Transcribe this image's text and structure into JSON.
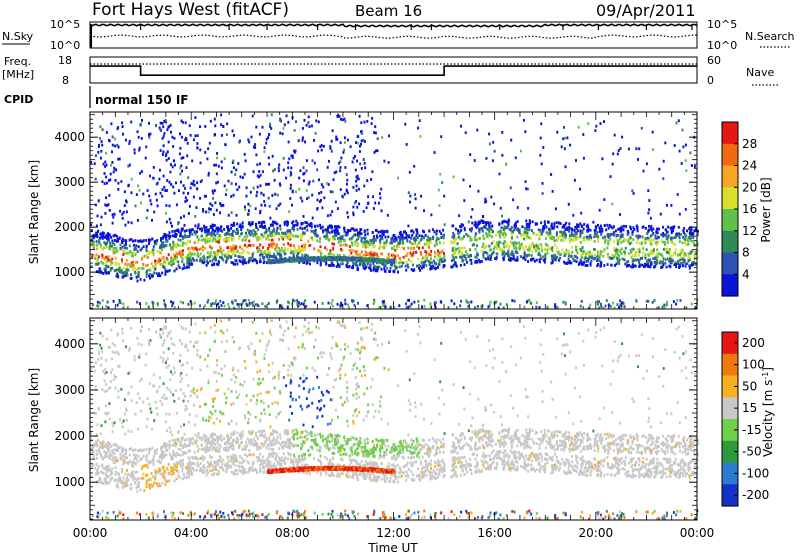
{
  "header": {
    "title_left": "Fort Hays West (fitACF)",
    "title_center": "Beam 16",
    "title_right": "09/Apr/2011"
  },
  "top_panels": {
    "nsky_label": "N.Sky",
    "nsky_ticks": [
      "10^5",
      "10^0"
    ],
    "nsky_right_ticks": [
      "10^5",
      "10^0"
    ],
    "nsearch_label": "N.Search",
    "freq_label": "Freq.",
    "freq_unit": "[MHz]",
    "freq_ticks": [
      "18",
      "8"
    ],
    "nave_ticks": [
      "60",
      "0"
    ],
    "nave_label": "Nave",
    "cpid_label": "CPID",
    "cpid_value": "normal 150 IF",
    "freq_segments": [
      {
        "start_hour": 0.0,
        "end_hour": 2.0,
        "mhz": 14.5
      },
      {
        "start_hour": 2.0,
        "end_hour": 14.0,
        "mhz": 11.0
      },
      {
        "start_hour": 14.0,
        "end_hour": 24.0,
        "mhz": 14.5
      }
    ]
  },
  "chart_data": [
    {
      "type": "heatmap",
      "name": "Power",
      "title": "",
      "xlabel": "",
      "ylabel": "Slant Range [km]",
      "xlim": [
        0,
        24
      ],
      "ylim": [
        180,
        4560
      ],
      "yticks": [
        "1000",
        "2000",
        "3000",
        "4000"
      ],
      "colorbar_label": "Power [dB]",
      "colorbar_ticks": [
        "4",
        "8",
        "12",
        "16",
        "20",
        "24",
        "28"
      ],
      "colorbar_colors": [
        "#0a14d8",
        "#2d52b4",
        "#2e8b57",
        "#5fc04a",
        "#d9e02a",
        "#f5a623",
        "#f06a10",
        "#e81515"
      ],
      "main_band_km": [
        [
          0,
          1450
        ],
        [
          2,
          1200
        ],
        [
          4,
          1550
        ],
        [
          8,
          1650
        ],
        [
          10,
          1500
        ],
        [
          12,
          1400
        ],
        [
          14,
          1500
        ],
        [
          16,
          1700
        ],
        [
          20,
          1550
        ],
        [
          24,
          1500
        ]
      ]
    },
    {
      "type": "heatmap",
      "name": "Velocity",
      "title": "",
      "xlabel": "Time UT",
      "ylabel": "Slant Range [km]",
      "xlim": [
        0,
        24
      ],
      "ylim": [
        180,
        4560
      ],
      "yticks": [
        "1000",
        "2000",
        "3000",
        "4000"
      ],
      "xticks": [
        "00:00",
        "04:00",
        "08:00",
        "12:00",
        "16:00",
        "20:00",
        "00:00"
      ],
      "colorbar_label": "Velocity [m s",
      "colorbar_label_sup": "-1",
      "colorbar_label_end": "]",
      "colorbar_ticks": [
        "200",
        "100",
        "50",
        "15",
        "-15",
        "-50",
        "-100",
        "-200"
      ],
      "colorbar_colors": [
        "#1432c8",
        "#2a7ad0",
        "#2e9b3a",
        "#6fd04a",
        "#c8c8c8",
        "#f6b020",
        "#f07a10",
        "#e81515"
      ]
    }
  ]
}
